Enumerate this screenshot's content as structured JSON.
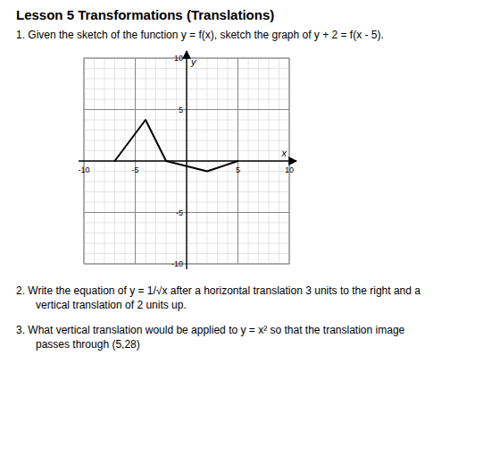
{
  "chart_data": {
    "type": "line",
    "title": "Lesson 5   Transformations (Translations)",
    "x": [
      -7,
      -4,
      -2,
      2,
      5
    ],
    "values": [
      0,
      4,
      0,
      -1,
      0
    ],
    "color": "#000000",
    "xlim": [
      -10,
      10
    ],
    "ylim": [
      -10,
      10
    ],
    "xticks": [
      -10,
      -5,
      5,
      10
    ],
    "yticks": [
      -10,
      -5,
      5,
      10
    ],
    "xlabel": "x",
    "ylabel": "y",
    "grid": true,
    "annotations": [
      "1.   Given the sketch of the function  y = f(x), sketch the graph of  y + 2 = f(x - 5).",
      "2.   Write the equation of  y = 1/√x  after a horizontal translation 3 units to the right and a",
      "vertical translation of 2 units up.",
      "3.   What vertical translation would be applied to  y = x²  so that the translation image",
      "passes through (5,28)"
    ]
  }
}
